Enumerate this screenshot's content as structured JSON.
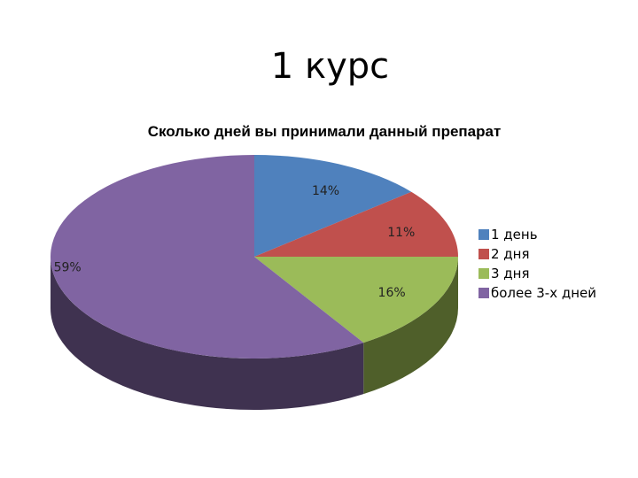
{
  "slide": {
    "title": "1 курс"
  },
  "chart_data": {
    "type": "pie",
    "title": "Сколько дней вы принимали данный препарат",
    "categories": [
      "1 день",
      "2 дня",
      "3 дня",
      "более 3-х дней"
    ],
    "values": [
      14,
      11,
      16,
      59
    ],
    "data_labels": [
      "14%",
      "11%",
      "16%",
      "59%"
    ],
    "colors": [
      "#4f81bd",
      "#c0504d",
      "#9bbb59",
      "#8064a2"
    ],
    "side_colors": [
      "#2a4668",
      "#6b2b29",
      "#4f5f2a",
      "#3f3250"
    ],
    "legend_position": "right",
    "style": "3d"
  }
}
